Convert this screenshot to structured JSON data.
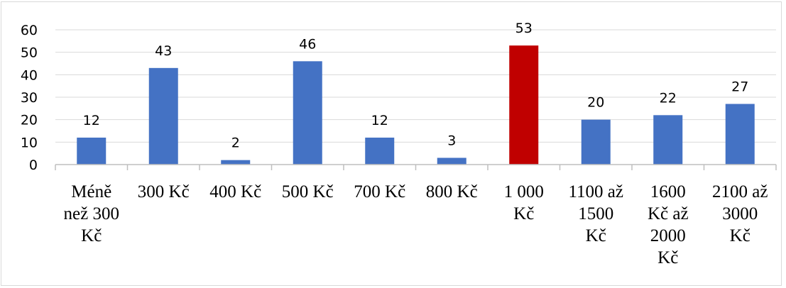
{
  "chart_data": {
    "type": "bar",
    "title": "",
    "xlabel": "",
    "ylabel": "",
    "categories": [
      [
        "Méně",
        "než 300",
        "Kč"
      ],
      [
        "300 Kč"
      ],
      [
        "400 Kč"
      ],
      [
        "500 Kč"
      ],
      [
        "700 Kč"
      ],
      [
        "800 Kč"
      ],
      [
        "1 000",
        "Kč"
      ],
      [
        "1100 až",
        "1500",
        "Kč"
      ],
      [
        "1600",
        "Kč až",
        "2000",
        "Kč"
      ],
      [
        "2100 až",
        "3000",
        "Kč"
      ]
    ],
    "values": [
      12,
      43,
      2,
      46,
      12,
      3,
      53,
      20,
      22,
      27
    ],
    "data_labels": [
      "12",
      "43",
      "2",
      "46",
      "12",
      "3",
      "53",
      "20",
      "22",
      "27"
    ],
    "colors": [
      "#4472c4",
      "#4472c4",
      "#4472c4",
      "#4472c4",
      "#4472c4",
      "#4472c4",
      "#c00000",
      "#4472c4",
      "#4472c4",
      "#4472c4"
    ],
    "ylim": [
      0,
      60
    ],
    "yticks": [
      0,
      10,
      20,
      30,
      40,
      50,
      60
    ],
    "ytick_labels": [
      "0",
      "10",
      "20",
      "30",
      "40",
      "50",
      "60"
    ],
    "grid": true,
    "legend": "none"
  }
}
